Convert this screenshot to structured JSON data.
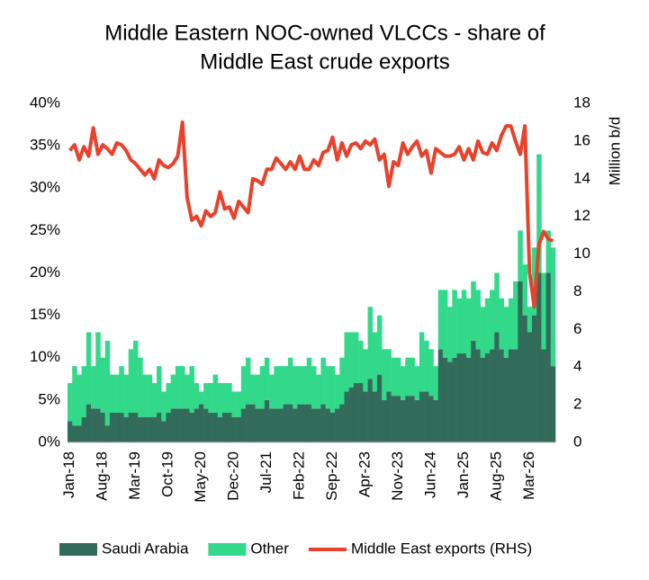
{
  "chart_data": {
    "type": "stacked-bar-line",
    "title": [
      "Middle Eastern NOC-owned VLCCs - share of",
      "Middle East crude exports"
    ],
    "y2_label": "Million b/d",
    "categories": [
      "Jan-18",
      null,
      null,
      null,
      null,
      null,
      null,
      "Aug-18",
      null,
      null,
      null,
      null,
      null,
      null,
      "Mar-19",
      null,
      null,
      null,
      null,
      null,
      null,
      "Oct-19",
      null,
      null,
      null,
      null,
      null,
      null,
      "May-20",
      null,
      null,
      null,
      null,
      null,
      null,
      "Dec-20",
      null,
      null,
      null,
      null,
      null,
      null,
      "Jul-21",
      null,
      null,
      null,
      null,
      null,
      null,
      "Feb-22",
      null,
      null,
      null,
      null,
      null,
      null,
      "Sep-22",
      null,
      null,
      null,
      null,
      null,
      null,
      "Apr-23",
      null,
      null,
      null,
      null,
      null,
      null,
      "Nov-23",
      null,
      null,
      null,
      null,
      null,
      null,
      "Jun-24",
      null,
      null,
      null,
      null,
      null,
      null,
      "Jan-25",
      null,
      null,
      null,
      null,
      null,
      null,
      "Aug-25",
      null,
      null,
      null,
      null,
      null,
      null,
      "Mar-26",
      null,
      null,
      null,
      null,
      null
    ],
    "series": [
      {
        "name": "Saudi Arabia",
        "color": "#336b5b",
        "kind": "bar",
        "values": [
          2.5,
          2,
          2,
          3,
          4.5,
          4,
          4,
          3.5,
          2,
          3.5,
          3.5,
          3.5,
          3,
          3.5,
          3.5,
          3,
          3,
          3,
          3,
          3.5,
          2.5,
          3.5,
          4,
          4,
          4,
          4,
          3.5,
          4,
          4.5,
          4,
          3.5,
          3.5,
          3,
          3.5,
          3.5,
          3,
          3,
          4,
          4.5,
          4.5,
          4,
          4,
          5,
          4,
          4,
          4,
          4.5,
          4.5,
          4,
          4.5,
          4.5,
          4.5,
          4,
          4,
          4.5,
          4,
          3.5,
          4,
          4.5,
          6,
          6.5,
          7,
          7,
          6,
          7.5,
          6,
          8,
          5,
          6,
          5.5,
          5.5,
          5,
          5.5,
          5.5,
          5,
          6,
          6,
          5.5,
          5,
          11,
          10,
          9.5,
          10,
          10.5,
          10.5,
          10,
          12,
          11,
          10,
          10.5,
          11,
          13,
          11,
          10,
          11,
          11,
          19,
          15,
          13,
          15,
          20,
          11,
          20,
          9
        ]
      },
      {
        "name": "Other",
        "color": "#33d98a",
        "kind": "bar",
        "values": [
          4.5,
          7,
          6,
          6,
          8.5,
          5,
          9,
          6.5,
          10,
          4.5,
          4.5,
          5.5,
          5,
          7.5,
          8.5,
          7,
          5,
          5,
          4,
          5.5,
          3.5,
          3.5,
          4,
          5,
          5,
          4,
          5.5,
          3,
          1.5,
          3,
          3.5,
          4.5,
          4,
          3.5,
          3.5,
          3,
          3,
          5,
          5.5,
          3.5,
          4,
          5,
          5,
          4,
          5,
          5,
          4.5,
          5.5,
          5,
          4.5,
          4.5,
          5.5,
          5,
          4,
          5.5,
          5,
          5.5,
          4,
          5.5,
          7,
          6.5,
          6,
          5,
          5,
          8.5,
          7,
          7,
          6,
          5,
          4.5,
          4.5,
          4,
          4.5,
          4.5,
          4,
          7,
          6,
          5.5,
          4,
          7,
          8,
          6.5,
          8,
          6.5,
          7.5,
          7,
          7,
          7,
          6,
          6.5,
          7,
          7,
          6,
          6,
          6,
          8,
          6,
          6,
          3,
          8,
          14,
          9,
          5,
          14
        ]
      },
      {
        "name": "Middle East exports (RHS)",
        "color": "#e8412c",
        "kind": "line",
        "axis": "y2",
        "values": [
          15.5,
          15.8,
          15.0,
          15.7,
          15.2,
          16.7,
          15.3,
          15.8,
          15.6,
          15.3,
          15.9,
          15.8,
          15.5,
          15.0,
          14.8,
          14.5,
          14.2,
          14.5,
          14.0,
          15.0,
          14.7,
          14.6,
          14.8,
          15.2,
          17.0,
          13.0,
          11.8,
          12.0,
          11.5,
          12.3,
          12.0,
          12.2,
          13.3,
          12.4,
          12.5,
          11.9,
          12.8,
          12.5,
          12.2,
          14.0,
          13.9,
          13.7,
          14.5,
          14.5,
          15.1,
          14.8,
          14.5,
          14.9,
          14.5,
          15.2,
          14.5,
          14.5,
          15.0,
          14.7,
          15.4,
          15.5,
          16.2,
          15.0,
          15.9,
          15.2,
          15.8,
          15.9,
          15.6,
          16.0,
          15.8,
          16.1,
          15.0,
          15.3,
          13.6,
          14.9,
          14.7,
          15.9,
          15.3,
          15.7,
          16.0,
          15.2,
          15.5,
          14.3,
          15.6,
          15.4,
          15.2,
          15.2,
          15.3,
          15.7,
          15.0,
          15.6,
          15.0,
          16.0,
          15.4,
          15.3,
          15.9,
          15.5,
          16.3,
          16.8,
          16.8,
          16.0,
          15.3,
          16.8,
          9.0,
          7.2,
          10.5,
          11.2,
          10.8,
          10.7
        ]
      }
    ],
    "ylim": [
      0,
      40
    ],
    "yticks": [
      {
        "value": 0,
        "label": "0%"
      },
      {
        "value": 5,
        "label": "5%"
      },
      {
        "value": 10,
        "label": "10%"
      },
      {
        "value": 15,
        "label": "15%"
      },
      {
        "value": 20,
        "label": "20%"
      },
      {
        "value": 25,
        "label": "25%"
      },
      {
        "value": 30,
        "label": "30%"
      },
      {
        "value": 35,
        "label": "35%"
      },
      {
        "value": 40,
        "label": "40%"
      }
    ],
    "y2lim": [
      0,
      18
    ],
    "y2ticks": [
      0,
      2,
      4,
      6,
      8,
      10,
      12,
      14,
      16,
      18
    ],
    "grid": false,
    "legend": "bottom"
  }
}
